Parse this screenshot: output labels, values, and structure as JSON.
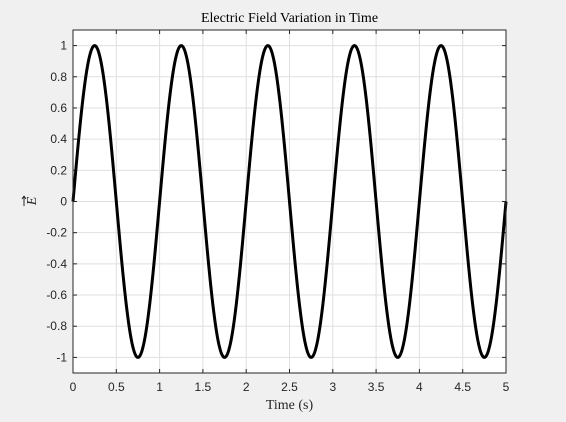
{
  "chart_data": {
    "type": "line",
    "title": "Electric Field Variation in Time",
    "xlabel": "Time (s)",
    "ylabel": "E",
    "ylabel_decoration": "vector-arrow",
    "xlim": [
      0,
      5
    ],
    "ylim": [
      -1.1,
      1.1
    ],
    "xticks": [
      0,
      0.5,
      1,
      1.5,
      2,
      2.5,
      3,
      3.5,
      4,
      4.5,
      5
    ],
    "xtick_labels": [
      "0",
      "0.5",
      "1",
      "1.5",
      "2",
      "2.5",
      "3",
      "3.5",
      "4",
      "4.5",
      "5"
    ],
    "yticks": [
      -1,
      -0.8,
      -0.6,
      -0.4,
      -0.2,
      0,
      0.2,
      0.4,
      0.6,
      0.8,
      1
    ],
    "ytick_labels": [
      "-1",
      "-0.8",
      "-0.6",
      "-0.4",
      "-0.2",
      "0",
      "0.2",
      "0.4",
      "0.6",
      "0.8",
      "1"
    ],
    "grid": true,
    "series": [
      {
        "function": "sin(2*pi*1*t)",
        "amplitude": 1,
        "frequency_hz": 1,
        "x": [
          0,
          0.25,
          0.5,
          0.75,
          1,
          1.25,
          1.5,
          1.75,
          2,
          2.25,
          2.5,
          2.75,
          3,
          3.25,
          3.5,
          3.75,
          4,
          4.25,
          4.5,
          4.75,
          5
        ],
        "values": [
          0,
          1,
          0,
          -1,
          0,
          1,
          0,
          -1,
          0,
          1,
          0,
          -1,
          0,
          1,
          0,
          -1,
          0,
          1,
          0,
          -1,
          0
        ],
        "color": "#000000"
      }
    ]
  },
  "colors": {
    "figure_background": "#f0f0f0",
    "axes_background": "#ffffff",
    "grid": "#dfdfdf",
    "axes_edge": "#262626",
    "line": "#000000"
  }
}
